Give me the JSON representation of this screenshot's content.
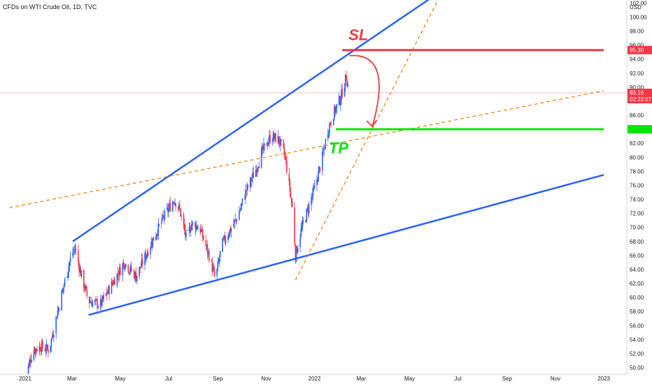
{
  "chart_data": {
    "type": "candlestick",
    "title": "CFDs on WTI Crude Oil, 1D, TVC",
    "currency": "USD",
    "x_labels": [
      "2021",
      "Mar",
      "May",
      "Jul",
      "Sep",
      "Nov",
      "2022",
      "Mar",
      "May",
      "Jul",
      "Sep",
      "Nov",
      "2023"
    ],
    "y_ticks": [
      "50.00",
      "52.00",
      "54.00",
      "56.00",
      "58.00",
      "60.00",
      "62.00",
      "64.00",
      "66.00",
      "68.00",
      "70.00",
      "72.00",
      "74.00",
      "76.00",
      "78.00",
      "80.00",
      "82.00",
      "84.00",
      "86.00",
      "88.00",
      "90.00",
      "92.00",
      "94.00",
      "96.00",
      "98.00",
      "100.00",
      "102.00"
    ],
    "ylim": [
      50,
      102
    ],
    "last_price": "89.16",
    "countdown": "02:22:07",
    "up_color": "#2962ff",
    "down_color": "#f23645",
    "price_path": [
      {
        "day": 0,
        "price": 48.5
      },
      {
        "day": 10,
        "price": 52.5
      },
      {
        "day": 20,
        "price": 53.0
      },
      {
        "day": 30,
        "price": 52.5
      },
      {
        "day": 45,
        "price": 60.0
      },
      {
        "day": 58,
        "price": 66.0
      },
      {
        "day": 63,
        "price": 67.0
      },
      {
        "day": 70,
        "price": 63.5
      },
      {
        "day": 80,
        "price": 59.5
      },
      {
        "day": 95,
        "price": 59.0
      },
      {
        "day": 110,
        "price": 62.0
      },
      {
        "day": 125,
        "price": 65.0
      },
      {
        "day": 140,
        "price": 63.0
      },
      {
        "day": 150,
        "price": 65.5
      },
      {
        "day": 160,
        "price": 68.0
      },
      {
        "day": 175,
        "price": 71.5
      },
      {
        "day": 188,
        "price": 74.0
      },
      {
        "day": 195,
        "price": 72.5
      },
      {
        "day": 203,
        "price": 68.5
      },
      {
        "day": 210,
        "price": 70.5
      },
      {
        "day": 220,
        "price": 70.0
      },
      {
        "day": 232,
        "price": 66.0
      },
      {
        "day": 240,
        "price": 62.5
      },
      {
        "day": 248,
        "price": 67.5
      },
      {
        "day": 258,
        "price": 69.5
      },
      {
        "day": 268,
        "price": 71.5
      },
      {
        "day": 278,
        "price": 75.0
      },
      {
        "day": 290,
        "price": 78.0
      },
      {
        "day": 300,
        "price": 81.0
      },
      {
        "day": 310,
        "price": 83.0
      },
      {
        "day": 320,
        "price": 82.5
      },
      {
        "day": 328,
        "price": 80.0
      },
      {
        "day": 333,
        "price": 76.0
      },
      {
        "day": 338,
        "price": 72.0
      },
      {
        "day": 341,
        "price": 66.0
      },
      {
        "day": 348,
        "price": 69.5
      },
      {
        "day": 355,
        "price": 72.0
      },
      {
        "day": 365,
        "price": 75.5
      },
      {
        "day": 375,
        "price": 80.0
      },
      {
        "day": 382,
        "price": 84.0
      },
      {
        "day": 390,
        "price": 86.5
      },
      {
        "day": 398,
        "price": 88.5
      },
      {
        "day": 405,
        "price": 91.5
      },
      {
        "day": 409,
        "price": 89.2
      }
    ],
    "lines": [
      {
        "name": "channel-upper",
        "color": "#2962ff",
        "style": "solid",
        "width": 2.5,
        "from": {
          "day": 60,
          "price": 68.0
        },
        "to": {
          "day": 535,
          "price": 104.5
        }
      },
      {
        "name": "channel-lower",
        "color": "#2962ff",
        "style": "solid",
        "width": 2.5,
        "from": {
          "day": 80,
          "price": 57.5
        },
        "to": {
          "day": 730,
          "price": 77.5
        }
      },
      {
        "name": "fib-dashed-shallow",
        "color": "#f57c00",
        "style": "dashed",
        "width": 1.2,
        "from": {
          "day": -20,
          "price": 72.8
        },
        "to": {
          "day": 730,
          "price": 89.5
        }
      },
      {
        "name": "fib-dashed-steep",
        "color": "#f57c00",
        "style": "dashed",
        "width": 1.2,
        "from": {
          "day": 341,
          "price": 62.5
        },
        "to": {
          "day": 530,
          "price": 104.5
        }
      },
      {
        "name": "stop-loss-level",
        "color": "#f23645",
        "style": "solid",
        "width": 3,
        "from": {
          "day": 400,
          "price": 95.3
        },
        "to": {
          "day": 730,
          "price": 95.3
        }
      },
      {
        "name": "take-profit-level",
        "color": "#00e600",
        "style": "solid",
        "width": 3,
        "from": {
          "day": 392,
          "price": 84.0
        },
        "to": {
          "day": 730,
          "price": 84.0
        }
      }
    ],
    "price_tags": [
      {
        "label": "95.30",
        "price": 95.3,
        "color": "#f23645"
      },
      {
        "label": "",
        "price": 84.0,
        "color": "#00e600"
      }
    ],
    "annotations": {
      "sl": {
        "text": "SL",
        "color": "#f23645",
        "day": 408,
        "price": 96.7
      },
      "tp": {
        "text": "TP",
        "color": "#00e600",
        "day": 383,
        "price": 80.6
      }
    },
    "arrow": {
      "color": "#f23645",
      "from": {
        "day": 409,
        "price": 94.5
      },
      "to": {
        "day": 438,
        "price": 84.4
      }
    },
    "grid": false,
    "legend": "none"
  }
}
